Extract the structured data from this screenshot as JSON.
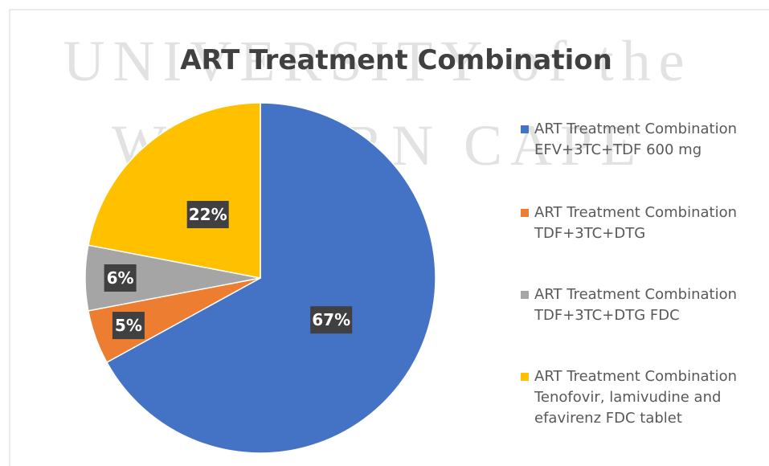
{
  "chart_data": {
    "type": "pie",
    "title": "ART Treatment Combination",
    "watermark": [
      "UNIVERSITY of the",
      "WESTERN CAPE"
    ],
    "categories": [
      "ART Treatment Combination EFV+3TC+TDF 600 mg",
      "ART Treatment Combination TDF+3TC+DTG",
      "ART Treatment Combination TDF+3TC+DTG FDC",
      "ART Treatment Combination Tenofovir, lamivudine and efavirenz FDC tablet"
    ],
    "values": [
      67,
      5,
      6,
      22
    ],
    "value_labels": [
      "67%",
      "5%",
      "6%",
      "22%"
    ],
    "colors": [
      "#4472c4",
      "#ed7d31",
      "#a5a5a5",
      "#ffc000"
    ],
    "legend": "right"
  }
}
